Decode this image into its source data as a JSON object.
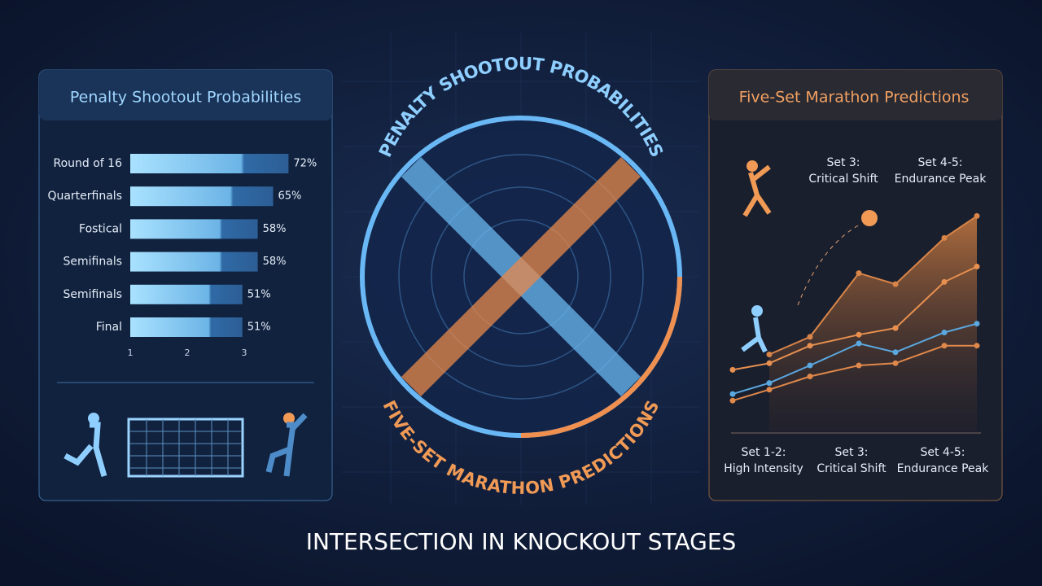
{
  "title": "INTERSECTION IN KNOCKOUT STAGES",
  "emblem": {
    "top": "PENALTY SHOOTOUT PROBABILITIES",
    "bottom": "FIVE-SET MARATHON PREDICTIONS"
  },
  "chart_data": [
    {
      "type": "bar",
      "title": "Penalty Shootout Probabilities",
      "orientation": "horizontal",
      "categories": [
        "Round of 16",
        "Quarterfinals",
        "Fostical",
        "Semifinals",
        "Semifinals",
        "Final"
      ],
      "values": [
        72,
        65,
        58,
        58,
        51,
        51
      ],
      "value_labels": [
        "72%",
        "65%",
        "58%",
        "58%",
        "51%",
        "51%"
      ],
      "xlim": [
        0,
        100
      ],
      "x_tick_labels": [
        "1",
        "2",
        "3"
      ],
      "color": "#8fd0f5"
    },
    {
      "type": "line",
      "title": "Five-Set Marathon Predictions",
      "categories": [
        null,
        null,
        null,
        null,
        null,
        null,
        null
      ],
      "ylim": [
        0,
        100
      ],
      "annotations_top": [
        "Set 3:\nCritical Shift",
        "Set 4-5:\nEndurance Peak"
      ],
      "annotations_bottom": [
        "Set 1-2:\nHigh Intensity",
        "Set 3:\nCritical Shift",
        "Set 4-5:\nEndurance Peak"
      ],
      "series": [
        {
          "color": "#d98548",
          "area": true,
          "values": [
            null,
            35,
            43,
            72,
            67,
            88,
            98
          ]
        },
        {
          "color": "#e8904f",
          "values": [
            28,
            31,
            39,
            44,
            47,
            68,
            75
          ]
        },
        {
          "color": "#5aa8e0",
          "values": [
            17,
            22,
            30,
            40,
            36,
            45,
            49
          ]
        },
        {
          "color": "#e0884a",
          "values": [
            14,
            19,
            25,
            30,
            31,
            39,
            39
          ]
        }
      ]
    }
  ]
}
